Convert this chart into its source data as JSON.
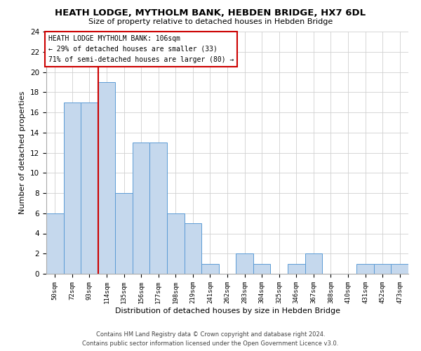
{
  "title": "HEATH LODGE, MYTHOLM BANK, HEBDEN BRIDGE, HX7 6DL",
  "subtitle": "Size of property relative to detached houses in Hebden Bridge",
  "xlabel": "Distribution of detached houses by size in Hebden Bridge",
  "ylabel": "Number of detached properties",
  "bar_labels": [
    "50sqm",
    "72sqm",
    "93sqm",
    "114sqm",
    "135sqm",
    "156sqm",
    "177sqm",
    "198sqm",
    "219sqm",
    "241sqm",
    "262sqm",
    "283sqm",
    "304sqm",
    "325sqm",
    "346sqm",
    "367sqm",
    "388sqm",
    "410sqm",
    "431sqm",
    "452sqm",
    "473sqm"
  ],
  "bar_values": [
    6,
    17,
    17,
    19,
    8,
    13,
    13,
    6,
    5,
    1,
    0,
    2,
    1,
    0,
    1,
    2,
    0,
    0,
    1,
    1,
    1
  ],
  "bar_color": "#c5d8ed",
  "bar_edge_color": "#5b9bd5",
  "vline_color": "#cc0000",
  "ylim": [
    0,
    24
  ],
  "yticks": [
    0,
    2,
    4,
    6,
    8,
    10,
    12,
    14,
    16,
    18,
    20,
    22,
    24
  ],
  "annotation_title": "HEATH LODGE MYTHOLM BANK: 106sqm",
  "annotation_line1": "← 29% of detached houses are smaller (33)",
  "annotation_line2": "71% of semi-detached houses are larger (80) →",
  "annotation_box_color": "#ffffff",
  "annotation_box_edge": "#cc0000",
  "footer1": "Contains HM Land Registry data © Crown copyright and database right 2024.",
  "footer2": "Contains public sector information licensed under the Open Government Licence v3.0.",
  "bg_color": "#ffffff",
  "grid_color": "#d0d0d0"
}
